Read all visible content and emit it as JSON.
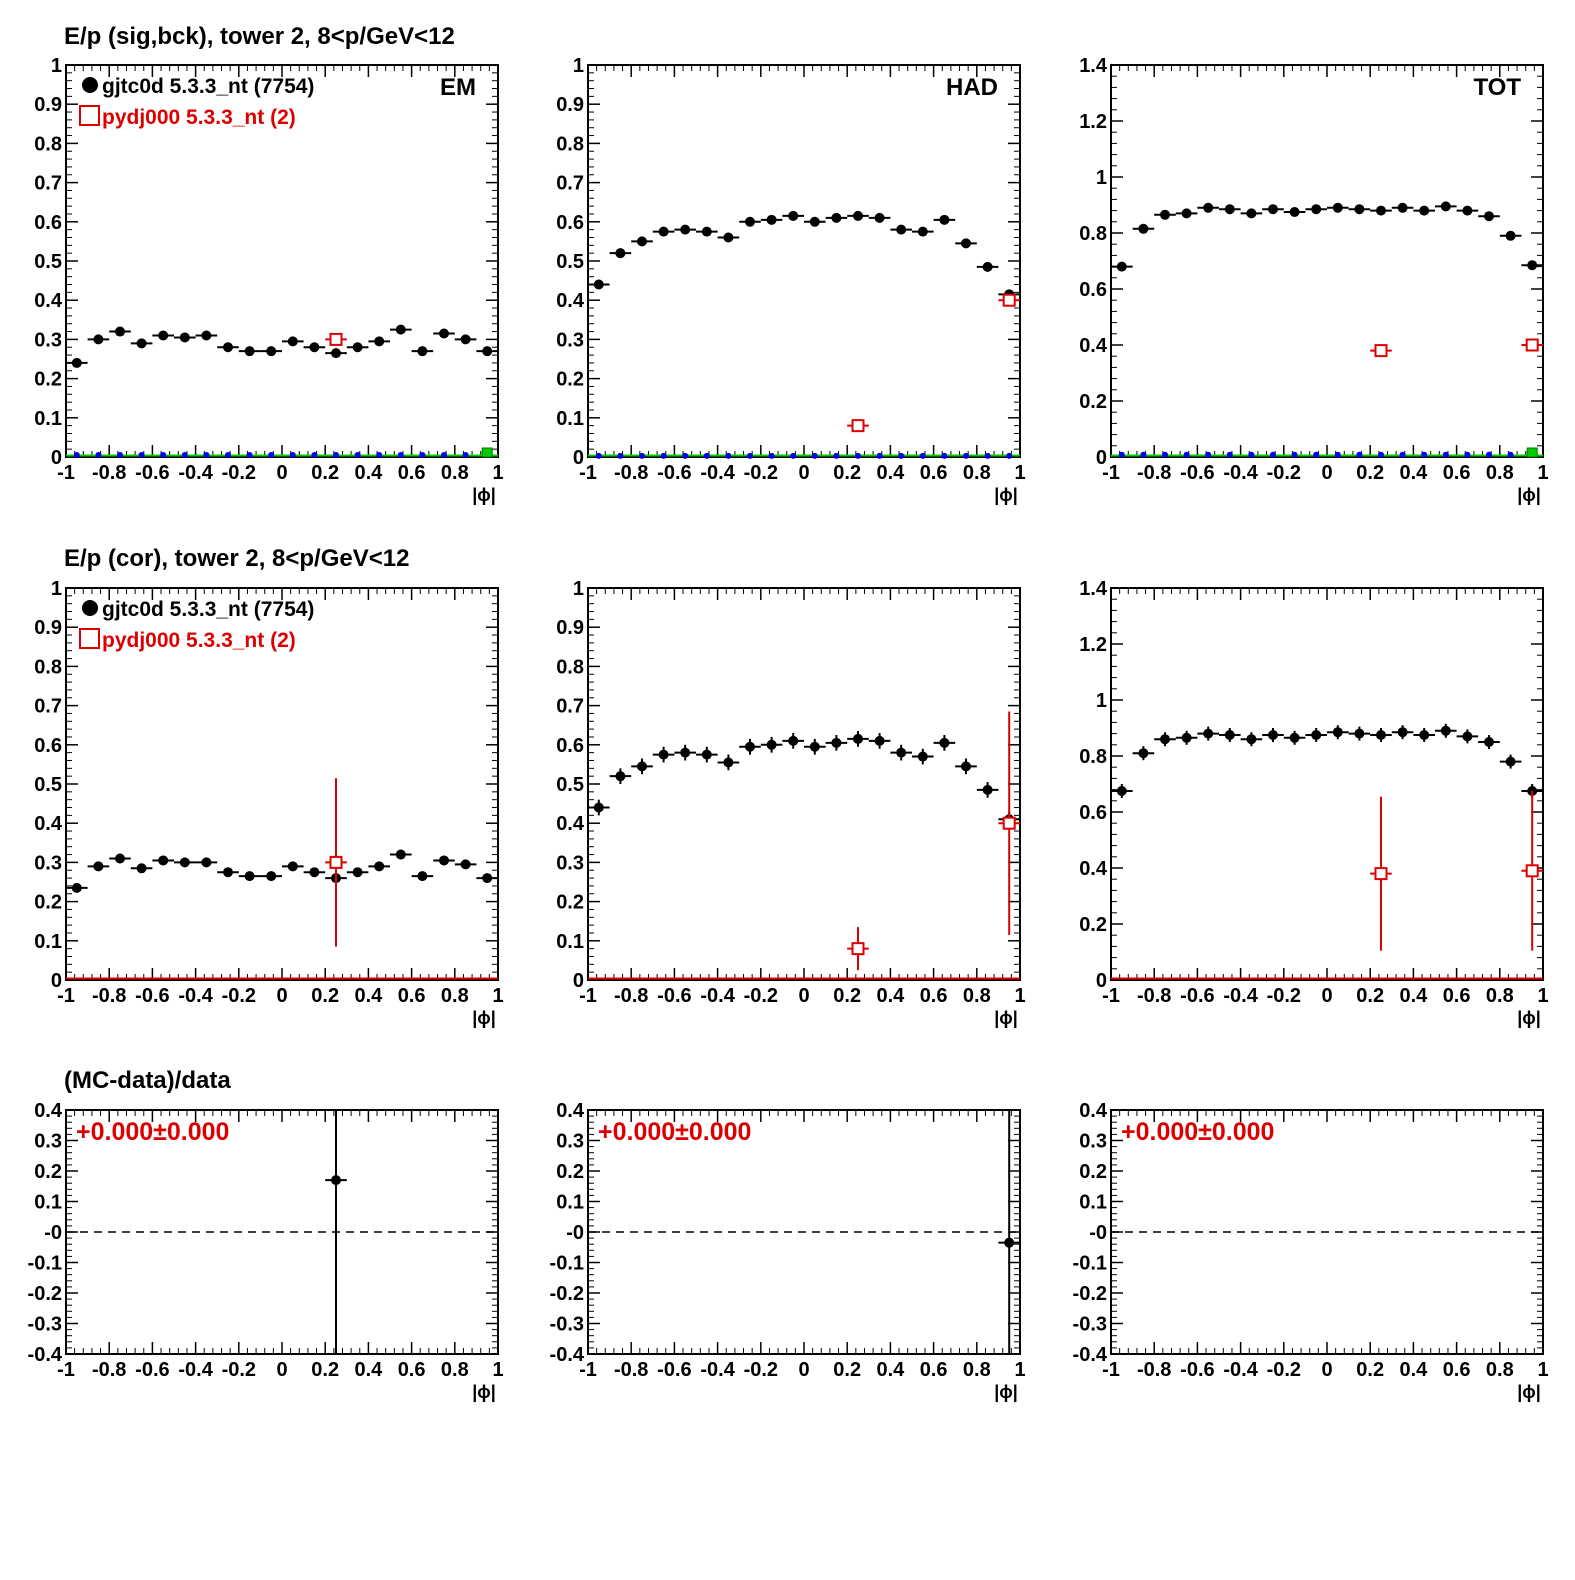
{
  "figure": {
    "row_titles": [
      "E/p (sig,bck), tower 2,  8<p/GeV<12",
      "E/p (cor), tower 2,  8<p/GeV<12",
      "(MC-data)/data"
    ],
    "x_axis_label": "|ϕ|",
    "legend": {
      "data_label": "gjtc0d 5.3.3_nt (7754)",
      "mc_label": "pydj000 5.3.3_nt (2)"
    },
    "panel_tags": [
      "EM",
      "HAD",
      "TOT"
    ],
    "ratio_text": "+0.000±0.000",
    "colors": {
      "data": "#000000",
      "mc": "#dd0000",
      "background_markers": "#0000ee",
      "zero_line_mc": "#00cc00",
      "axis": "#000000"
    }
  },
  "chart_data": [
    {
      "id": "em-sig",
      "type": "scatter",
      "title": "E/p (sig,bck), tower 2,  8<p/GeV<12",
      "tag": "EM",
      "xlim": [
        -1,
        1
      ],
      "ylim": [
        0,
        1
      ],
      "xticks": [
        -1,
        -0.8,
        -0.6,
        -0.4,
        -0.2,
        0,
        0.2,
        0.4,
        0.6,
        0.8,
        1
      ],
      "yticks": [
        0,
        0.1,
        0.2,
        0.3,
        0.4,
        0.5,
        0.6,
        0.7,
        0.8,
        0.9,
        1
      ],
      "xlabel": "|ϕ|",
      "legend": true,
      "series": [
        {
          "name": "gjtc0d 5.3.3_nt (7754)",
          "marker": "dot",
          "x": [
            -0.95,
            -0.85,
            -0.75,
            -0.65,
            -0.55,
            -0.45,
            -0.35,
            -0.25,
            -0.15,
            -0.05,
            0.05,
            0.15,
            0.25,
            0.35,
            0.45,
            0.55,
            0.65,
            0.75,
            0.85,
            0.95
          ],
          "y": [
            0.24,
            0.3,
            0.32,
            0.29,
            0.31,
            0.305,
            0.31,
            0.28,
            0.27,
            0.27,
            0.295,
            0.28,
            0.265,
            0.28,
            0.295,
            0.325,
            0.27,
            0.315,
            0.3,
            0.27
          ],
          "err": [
            0.008,
            0.008,
            0.008,
            0.008,
            0.008,
            0.008,
            0.008,
            0.008,
            0.008,
            0.008,
            0.008,
            0.008,
            0.008,
            0.008,
            0.008,
            0.008,
            0.008,
            0.008,
            0.008,
            0.008
          ]
        },
        {
          "name": "pydj000 5.3.3_nt (2)",
          "marker": "open-square",
          "x": [
            0.25
          ],
          "y": [
            0.3
          ],
          "err": [
            0
          ]
        },
        {
          "marker": "small-dot",
          "x": [
            -0.95,
            -0.85,
            -0.75,
            -0.65,
            -0.55,
            -0.45,
            -0.35,
            -0.25,
            -0.15,
            -0.05,
            0.05,
            0.15,
            0.25,
            0.35,
            0.45,
            0.55,
            0.65,
            0.75,
            0.85,
            0.95
          ],
          "y": [
            0.005,
            0.005,
            0.005,
            0.005,
            0.005,
            0.005,
            0.005,
            0.005,
            0.005,
            0.005,
            0.005,
            0.005,
            0.005,
            0.005,
            0.005,
            0.005,
            0.005,
            0.005,
            0.005,
            0.005
          ],
          "err": []
        }
      ]
    },
    {
      "id": "had-sig",
      "type": "scatter",
      "tag": "HAD",
      "xlim": [
        -1,
        1
      ],
      "ylim": [
        0,
        1
      ],
      "xticks": [
        -1,
        -0.8,
        -0.6,
        -0.4,
        -0.2,
        0,
        0.2,
        0.4,
        0.6,
        0.8,
        1
      ],
      "yticks": [
        0,
        0.1,
        0.2,
        0.3,
        0.4,
        0.5,
        0.6,
        0.7,
        0.8,
        0.9,
        1
      ],
      "xlabel": "|ϕ|",
      "series": [
        {
          "name": "gjtc0d 5.3.3_nt (7754)",
          "marker": "dot",
          "x": [
            -0.95,
            -0.85,
            -0.75,
            -0.65,
            -0.55,
            -0.45,
            -0.35,
            -0.25,
            -0.15,
            -0.05,
            0.05,
            0.15,
            0.25,
            0.35,
            0.45,
            0.55,
            0.65,
            0.75,
            0.85,
            0.95
          ],
          "y": [
            0.44,
            0.52,
            0.55,
            0.575,
            0.58,
            0.575,
            0.56,
            0.6,
            0.605,
            0.615,
            0.6,
            0.61,
            0.615,
            0.61,
            0.58,
            0.575,
            0.605,
            0.545,
            0.485,
            0.415
          ],
          "err": [
            0.012,
            0.012,
            0.012,
            0.012,
            0.012,
            0.012,
            0.012,
            0.012,
            0.012,
            0.012,
            0.012,
            0.012,
            0.012,
            0.012,
            0.012,
            0.012,
            0.012,
            0.012,
            0.012,
            0.012
          ]
        },
        {
          "name": "pydj000 5.3.3_nt (2)",
          "marker": "open-square",
          "x": [
            0.25,
            0.95
          ],
          "y": [
            0.08,
            0.4
          ],
          "err": [
            0,
            0
          ]
        },
        {
          "marker": "small-dot",
          "x": [
            -0.95,
            -0.85,
            -0.75,
            -0.65,
            -0.55,
            -0.45,
            -0.35,
            -0.25,
            -0.15,
            -0.05,
            0.05,
            0.15,
            0.25,
            0.35,
            0.45,
            0.55,
            0.65,
            0.75,
            0.85,
            0.95
          ],
          "y": [
            0.003,
            0.003,
            0.003,
            0.003,
            0.003,
            0.003,
            0.003,
            0.003,
            0.003,
            0.003,
            0.003,
            0.003,
            0.003,
            0.003,
            0.003,
            0.003,
            0.003,
            0.003,
            0.003,
            0.003
          ],
          "err": []
        }
      ]
    },
    {
      "id": "tot-sig",
      "type": "scatter",
      "tag": "TOT",
      "xlim": [
        -1,
        1
      ],
      "ylim": [
        0,
        1.4
      ],
      "xticks": [
        -1,
        -0.8,
        -0.6,
        -0.4,
        -0.2,
        0,
        0.2,
        0.4,
        0.6,
        0.8,
        1
      ],
      "yticks": [
        0,
        0.2,
        0.4,
        0.6,
        0.8,
        1,
        1.2,
        1.4
      ],
      "xlabel": "|ϕ|",
      "series": [
        {
          "name": "gjtc0d 5.3.3_nt (7754)",
          "marker": "dot",
          "x": [
            -0.95,
            -0.85,
            -0.75,
            -0.65,
            -0.55,
            -0.45,
            -0.35,
            -0.25,
            -0.15,
            -0.05,
            0.05,
            0.15,
            0.25,
            0.35,
            0.45,
            0.55,
            0.65,
            0.75,
            0.85,
            0.95
          ],
          "y": [
            0.68,
            0.815,
            0.865,
            0.87,
            0.89,
            0.885,
            0.87,
            0.885,
            0.875,
            0.885,
            0.89,
            0.885,
            0.88,
            0.89,
            0.88,
            0.895,
            0.88,
            0.86,
            0.79,
            0.685
          ],
          "err": [
            0.01,
            0.01,
            0.01,
            0.01,
            0.01,
            0.01,
            0.01,
            0.01,
            0.01,
            0.01,
            0.01,
            0.01,
            0.01,
            0.01,
            0.01,
            0.01,
            0.01,
            0.01,
            0.01,
            0.01
          ]
        },
        {
          "name": "pydj000 5.3.3_nt (2)",
          "marker": "open-square",
          "x": [
            0.25,
            0.95
          ],
          "y": [
            0.38,
            0.4
          ],
          "err": [
            0,
            0
          ]
        },
        {
          "marker": "small-dot",
          "x": [
            -0.95,
            -0.85,
            -0.75,
            -0.65,
            -0.55,
            -0.45,
            -0.35,
            -0.25,
            -0.15,
            -0.05,
            0.05,
            0.15,
            0.25,
            0.35,
            0.45,
            0.55,
            0.65,
            0.75,
            0.85,
            0.95
          ],
          "y": [
            0.008,
            0.008,
            0.008,
            0.008,
            0.008,
            0.008,
            0.008,
            0.008,
            0.008,
            0.008,
            0.008,
            0.008,
            0.008,
            0.008,
            0.008,
            0.008,
            0.008,
            0.008,
            0.008,
            0.008
          ],
          "err": []
        }
      ]
    },
    {
      "id": "em-cor",
      "type": "scatter",
      "title": "E/p (cor), tower 2,  8<p/GeV<12",
      "xlim": [
        -1,
        1
      ],
      "ylim": [
        0,
        1
      ],
      "xticks": [
        -1,
        -0.8,
        -0.6,
        -0.4,
        -0.2,
        0,
        0.2,
        0.4,
        0.6,
        0.8,
        1
      ],
      "yticks": [
        0,
        0.1,
        0.2,
        0.3,
        0.4,
        0.5,
        0.6,
        0.7,
        0.8,
        0.9,
        1
      ],
      "xlabel": "|ϕ|",
      "legend": true,
      "series": [
        {
          "name": "gjtc0d 5.3.3_nt (7754)",
          "marker": "dot",
          "x": [
            -0.95,
            -0.85,
            -0.75,
            -0.65,
            -0.55,
            -0.45,
            -0.35,
            -0.25,
            -0.15,
            -0.05,
            0.05,
            0.15,
            0.25,
            0.35,
            0.45,
            0.55,
            0.65,
            0.75,
            0.85,
            0.95
          ],
          "y": [
            0.235,
            0.29,
            0.31,
            0.285,
            0.305,
            0.3,
            0.3,
            0.275,
            0.265,
            0.265,
            0.29,
            0.275,
            0.26,
            0.275,
            0.29,
            0.32,
            0.265,
            0.305,
            0.295,
            0.26
          ],
          "err": [
            0.012,
            0.012,
            0.012,
            0.012,
            0.012,
            0.012,
            0.012,
            0.012,
            0.012,
            0.012,
            0.012,
            0.012,
            0.012,
            0.012,
            0.012,
            0.012,
            0.012,
            0.012,
            0.012,
            0.012
          ]
        },
        {
          "name": "pydj000 5.3.3_nt (2)",
          "marker": "open-square",
          "x": [
            0.25
          ],
          "y": [
            0.3
          ],
          "err": [
            0.215
          ]
        }
      ]
    },
    {
      "id": "had-cor",
      "type": "scatter",
      "xlim": [
        -1,
        1
      ],
      "ylim": [
        0,
        1
      ],
      "xticks": [
        -1,
        -0.8,
        -0.6,
        -0.4,
        -0.2,
        0,
        0.2,
        0.4,
        0.6,
        0.8,
        1
      ],
      "yticks": [
        0,
        0.1,
        0.2,
        0.3,
        0.4,
        0.5,
        0.6,
        0.7,
        0.8,
        0.9,
        1
      ],
      "xlabel": "|ϕ|",
      "series": [
        {
          "name": "gjtc0d 5.3.3_nt (7754)",
          "marker": "dot",
          "x": [
            -0.95,
            -0.85,
            -0.75,
            -0.65,
            -0.55,
            -0.45,
            -0.35,
            -0.25,
            -0.15,
            -0.05,
            0.05,
            0.15,
            0.25,
            0.35,
            0.45,
            0.55,
            0.65,
            0.75,
            0.85,
            0.95
          ],
          "y": [
            0.44,
            0.52,
            0.545,
            0.575,
            0.58,
            0.575,
            0.555,
            0.595,
            0.6,
            0.61,
            0.595,
            0.605,
            0.615,
            0.61,
            0.58,
            0.57,
            0.605,
            0.545,
            0.485,
            0.41
          ],
          "err": [
            0.02,
            0.02,
            0.02,
            0.02,
            0.02,
            0.02,
            0.02,
            0.02,
            0.02,
            0.02,
            0.02,
            0.02,
            0.02,
            0.02,
            0.02,
            0.02,
            0.02,
            0.02,
            0.02,
            0.02
          ]
        },
        {
          "name": "pydj000 5.3.3_nt (2)",
          "marker": "open-square",
          "x": [
            0.25,
            0.95
          ],
          "y": [
            0.08,
            0.4
          ],
          "err": [
            0.055,
            0.285
          ]
        }
      ]
    },
    {
      "id": "tot-cor",
      "type": "scatter",
      "xlim": [
        -1,
        1
      ],
      "ylim": [
        0,
        1.4
      ],
      "xticks": [
        -1,
        -0.8,
        -0.6,
        -0.4,
        -0.2,
        0,
        0.2,
        0.4,
        0.6,
        0.8,
        1
      ],
      "yticks": [
        0,
        0.2,
        0.4,
        0.6,
        0.8,
        1,
        1.2,
        1.4
      ],
      "xlabel": "|ϕ|",
      "series": [
        {
          "name": "gjtc0d 5.3.3_nt (7754)",
          "marker": "dot",
          "x": [
            -0.95,
            -0.85,
            -0.75,
            -0.65,
            -0.55,
            -0.45,
            -0.35,
            -0.25,
            -0.15,
            -0.05,
            0.05,
            0.15,
            0.25,
            0.35,
            0.45,
            0.55,
            0.65,
            0.75,
            0.85,
            0.95
          ],
          "y": [
            0.675,
            0.81,
            0.86,
            0.865,
            0.88,
            0.875,
            0.86,
            0.875,
            0.865,
            0.875,
            0.885,
            0.88,
            0.875,
            0.885,
            0.875,
            0.89,
            0.87,
            0.85,
            0.78,
            0.675
          ],
          "err": [
            0.025,
            0.025,
            0.025,
            0.025,
            0.025,
            0.025,
            0.025,
            0.025,
            0.025,
            0.025,
            0.025,
            0.025,
            0.025,
            0.025,
            0.025,
            0.025,
            0.025,
            0.025,
            0.025,
            0.025
          ]
        },
        {
          "name": "pydj000 5.3.3_nt (2)",
          "marker": "open-square",
          "x": [
            0.25,
            0.95
          ],
          "y": [
            0.38,
            0.39
          ],
          "err": [
            0.275,
            0.285
          ]
        }
      ]
    },
    {
      "id": "em-ratio",
      "type": "scatter",
      "title": "(MC-data)/data",
      "annotation": "+0.000±0.000",
      "xlim": [
        -1,
        1
      ],
      "ylim": [
        -0.4,
        0.4
      ],
      "xticks": [
        -1,
        -0.8,
        -0.6,
        -0.4,
        -0.2,
        0,
        0.2,
        0.4,
        0.6,
        0.8,
        1
      ],
      "yticks": [
        -0.4,
        -0.3,
        -0.2,
        -0.1,
        0,
        0.1,
        0.2,
        0.3,
        0.4
      ],
      "ytick_labels": [
        "-0.4",
        "-0.3",
        "-0.2",
        "-0.1",
        "-0",
        "0.1",
        "0.2",
        "0.3",
        "0.4"
      ],
      "xlabel": "|ϕ|",
      "refline": 0,
      "series": [
        {
          "marker": "dot",
          "x": [
            0.25
          ],
          "y": [
            0.17
          ],
          "err": [
            0.9
          ]
        }
      ]
    },
    {
      "id": "had-ratio",
      "type": "scatter",
      "annotation": "+0.000±0.000",
      "xlim": [
        -1,
        1
      ],
      "ylim": [
        -0.4,
        0.4
      ],
      "xticks": [
        -1,
        -0.8,
        -0.6,
        -0.4,
        -0.2,
        0,
        0.2,
        0.4,
        0.6,
        0.8,
        1
      ],
      "yticks": [
        -0.4,
        -0.3,
        -0.2,
        -0.1,
        0,
        0.1,
        0.2,
        0.3,
        0.4
      ],
      "ytick_labels": [
        "-0.4",
        "-0.3",
        "-0.2",
        "-0.1",
        "-0",
        "0.1",
        "0.2",
        "0.3",
        "0.4"
      ],
      "xlabel": "|ϕ|",
      "refline": 0,
      "series": [
        {
          "marker": "dot",
          "x": [
            0.95
          ],
          "y": [
            -0.035
          ],
          "err": [
            0.9
          ]
        }
      ]
    },
    {
      "id": "tot-ratio",
      "type": "scatter",
      "annotation": "+0.000±0.000",
      "xlim": [
        -1,
        1
      ],
      "ylim": [
        -0.4,
        0.4
      ],
      "xticks": [
        -1,
        -0.8,
        -0.6,
        -0.4,
        -0.2,
        0,
        0.2,
        0.4,
        0.6,
        0.8,
        1
      ],
      "yticks": [
        -0.4,
        -0.3,
        -0.2,
        -0.1,
        0,
        0.1,
        0.2,
        0.3,
        0.4
      ],
      "ytick_labels": [
        "-0.4",
        "-0.3",
        "-0.2",
        "-0.1",
        "-0",
        "0.1",
        "0.2",
        "0.3",
        "0.4"
      ],
      "xlabel": "|ϕ|",
      "refline": 0,
      "series": []
    }
  ]
}
